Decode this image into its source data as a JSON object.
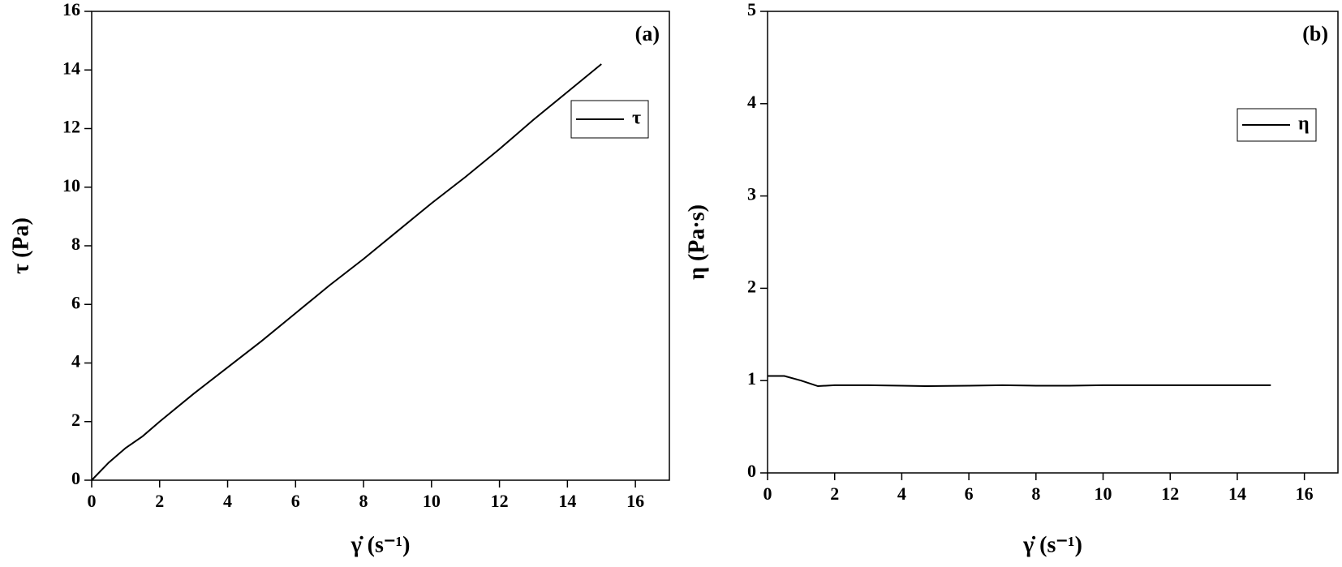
{
  "chart_data": [
    {
      "type": "line",
      "panel_label": "(a)",
      "x_label": "γ̇ (s⁻¹)",
      "y_label": "τ (Pa)",
      "x": [
        0,
        0.5,
        1,
        1.5,
        2,
        3,
        4,
        5,
        6,
        7,
        8,
        9,
        10,
        11,
        12,
        13,
        14,
        15
      ],
      "series": [
        {
          "name": "τ",
          "color": "#000000",
          "values": [
            0,
            0.6,
            1.1,
            1.5,
            2.0,
            2.95,
            3.85,
            4.75,
            5.7,
            6.65,
            7.55,
            8.5,
            9.45,
            10.35,
            11.3,
            12.3,
            13.25,
            14.2
          ]
        }
      ],
      "xlim": [
        0,
        17
      ],
      "ylim": [
        0,
        16
      ],
      "xticks": [
        0,
        2,
        4,
        6,
        8,
        10,
        12,
        14,
        16
      ],
      "yticks": [
        0,
        2,
        4,
        6,
        8,
        10,
        12,
        14,
        16
      ],
      "legend": "upper right"
    },
    {
      "type": "line",
      "panel_label": "(b)",
      "x_label": "γ̇ (s⁻¹)",
      "y_label": "η (Pa·s)",
      "x": [
        0,
        0.5,
        1,
        1.5,
        2,
        3,
        4,
        4.7,
        6,
        7,
        8,
        9,
        10,
        11,
        12,
        13,
        14,
        15
      ],
      "series": [
        {
          "name": "η",
          "color": "#000000",
          "values": [
            1.05,
            1.05,
            1.0,
            0.94,
            0.95,
            0.95,
            0.945,
            0.94,
            0.945,
            0.95,
            0.945,
            0.945,
            0.95,
            0.95,
            0.95,
            0.95,
            0.95,
            0.95
          ]
        }
      ],
      "xlim": [
        0,
        17
      ],
      "ylim": [
        0,
        5
      ],
      "xticks": [
        0,
        2,
        4,
        6,
        8,
        10,
        12,
        14,
        16
      ],
      "yticks": [
        0,
        1,
        2,
        3,
        4,
        5
      ],
      "legend": "upper right"
    }
  ]
}
